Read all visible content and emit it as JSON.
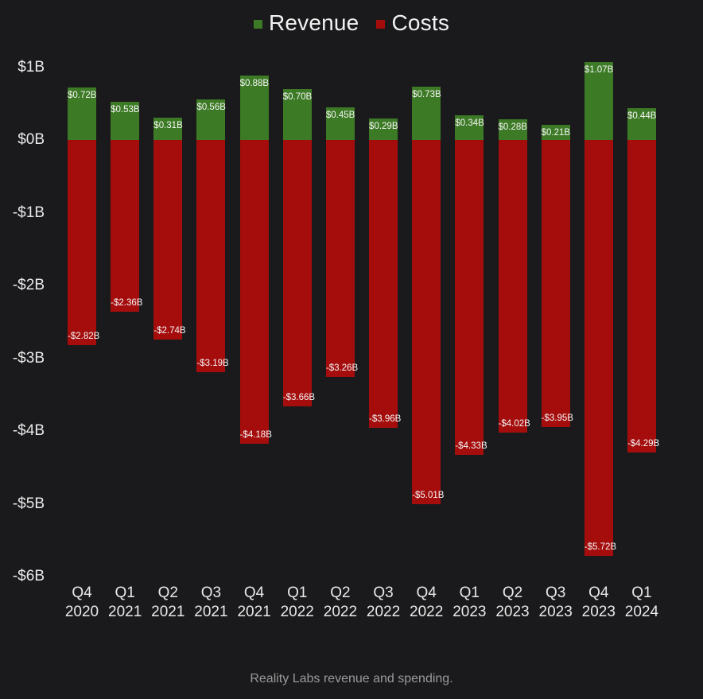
{
  "chart_data": {
    "type": "bar",
    "subtype": "diverging-stacked-column",
    "caption": "Reality Labs revenue and spending.",
    "categories": [
      {
        "quarter": "Q4",
        "year": "2020"
      },
      {
        "quarter": "Q1",
        "year": "2021"
      },
      {
        "quarter": "Q2",
        "year": "2021"
      },
      {
        "quarter": "Q3",
        "year": "2021"
      },
      {
        "quarter": "Q4",
        "year": "2021"
      },
      {
        "quarter": "Q1",
        "year": "2022"
      },
      {
        "quarter": "Q2",
        "year": "2022"
      },
      {
        "quarter": "Q3",
        "year": "2022"
      },
      {
        "quarter": "Q4",
        "year": "2022"
      },
      {
        "quarter": "Q1",
        "year": "2023"
      },
      {
        "quarter": "Q2",
        "year": "2023"
      },
      {
        "quarter": "Q3",
        "year": "2023"
      },
      {
        "quarter": "Q4",
        "year": "2023"
      },
      {
        "quarter": "Q1",
        "year": "2024"
      }
    ],
    "series": [
      {
        "name": "Revenue",
        "color": "#3c7a25",
        "unit": "B",
        "values": [
          0.72,
          0.53,
          0.31,
          0.56,
          0.88,
          0.7,
          0.45,
          0.29,
          0.73,
          0.34,
          0.28,
          0.21,
          1.07,
          0.44
        ],
        "labels": [
          "$0.72B",
          "$0.53B",
          "$0.31B",
          "$0.56B",
          "$0.88B",
          "$0.70B",
          "$0.45B",
          "$0.29B",
          "$0.73B",
          "$0.34B",
          "$0.28B",
          "$0.21B",
          "$1.07B",
          "$0.44B"
        ]
      },
      {
        "name": "Costs",
        "color": "#a50d0d",
        "unit": "B",
        "values": [
          -2.82,
          -2.36,
          -2.74,
          -3.19,
          -4.18,
          -3.66,
          -3.26,
          -3.96,
          -5.01,
          -4.33,
          -4.02,
          -3.95,
          -5.72,
          -4.29
        ],
        "labels": [
          "-$2.82B",
          "-$2.36B",
          "-$2.74B",
          "-$3.19B",
          "-$4.18B",
          "-$3.66B",
          "-$3.26B",
          "-$3.96B",
          "-$5.01B",
          "-$4.33B",
          "-$4.02B",
          "-$3.95B",
          "-$5.72B",
          "-$4.29B"
        ]
      }
    ],
    "yticks": [
      {
        "label": "$1B",
        "value": 1
      },
      {
        "label": "$0B",
        "value": 0
      },
      {
        "label": "-$1B",
        "value": -1
      },
      {
        "label": "-$2B",
        "value": -2
      },
      {
        "label": "-$3B",
        "value": -3
      },
      {
        "label": "-$4B",
        "value": -4
      },
      {
        "label": "-$5B",
        "value": -5
      },
      {
        "label": "-$6B",
        "value": -6
      }
    ],
    "ylim": [
      -6,
      1.1
    ],
    "grid": false,
    "legend_position": "top-center",
    "background": "#1a1a1c"
  }
}
